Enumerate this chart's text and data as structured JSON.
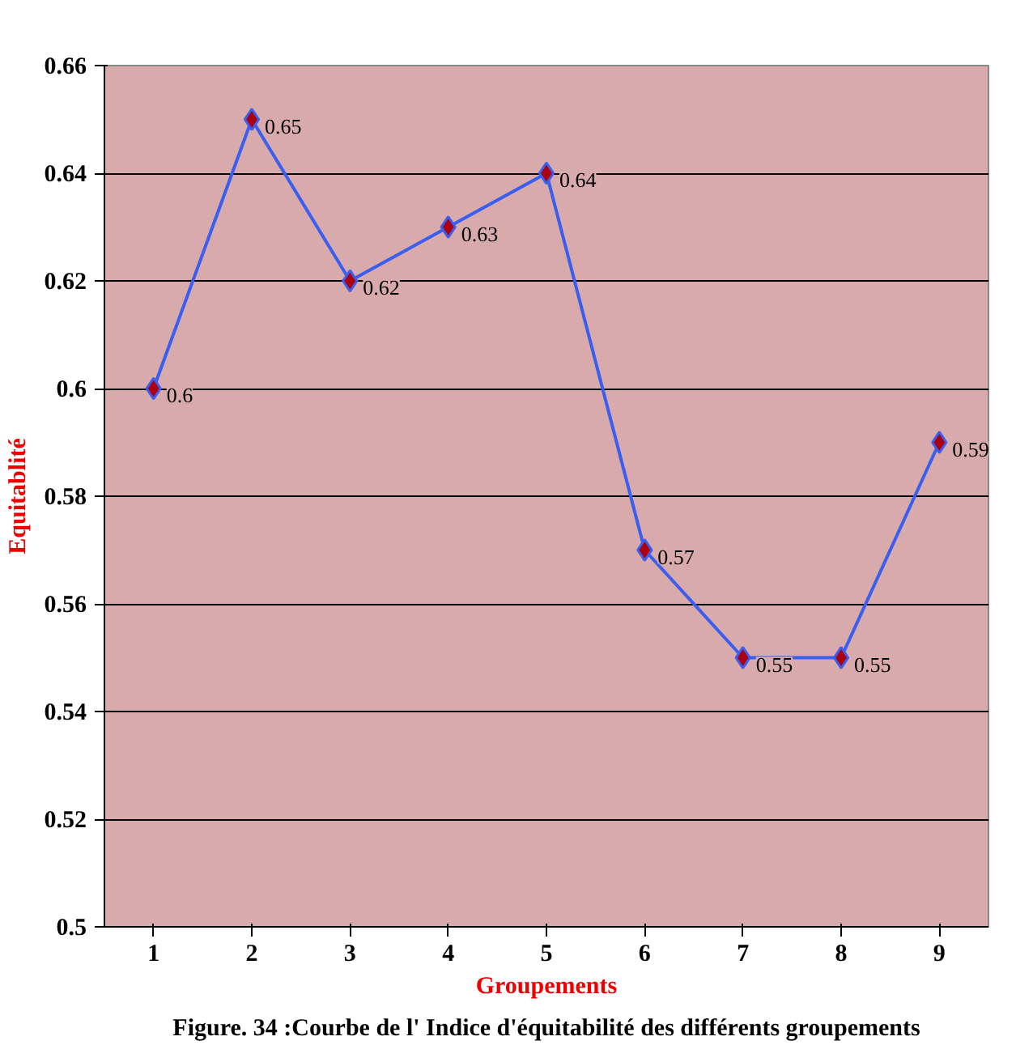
{
  "chart_data": {
    "type": "line",
    "xlabel": "Groupements",
    "ylabel": "Equitablité",
    "categories": [
      "1",
      "2",
      "3",
      "4",
      "5",
      "6",
      "7",
      "8",
      "9"
    ],
    "series": [
      {
        "color": "#3a5ff0",
        "values": [
          0.6,
          0.65,
          0.62,
          0.63,
          0.64,
          0.57,
          0.55,
          0.55,
          0.59
        ]
      }
    ],
    "ylim": [
      0.5,
      0.66
    ],
    "yticks": [
      0.5,
      0.52,
      0.54,
      0.56,
      0.58,
      0.6,
      0.62,
      0.64,
      0.66
    ],
    "grid": "y",
    "marker": "diamond",
    "line_style": "solid",
    "data_labels": true,
    "annotations": [
      "Figure. 34 :Courbe de l' Indice d'équitabilité des différents groupements"
    ]
  }
}
